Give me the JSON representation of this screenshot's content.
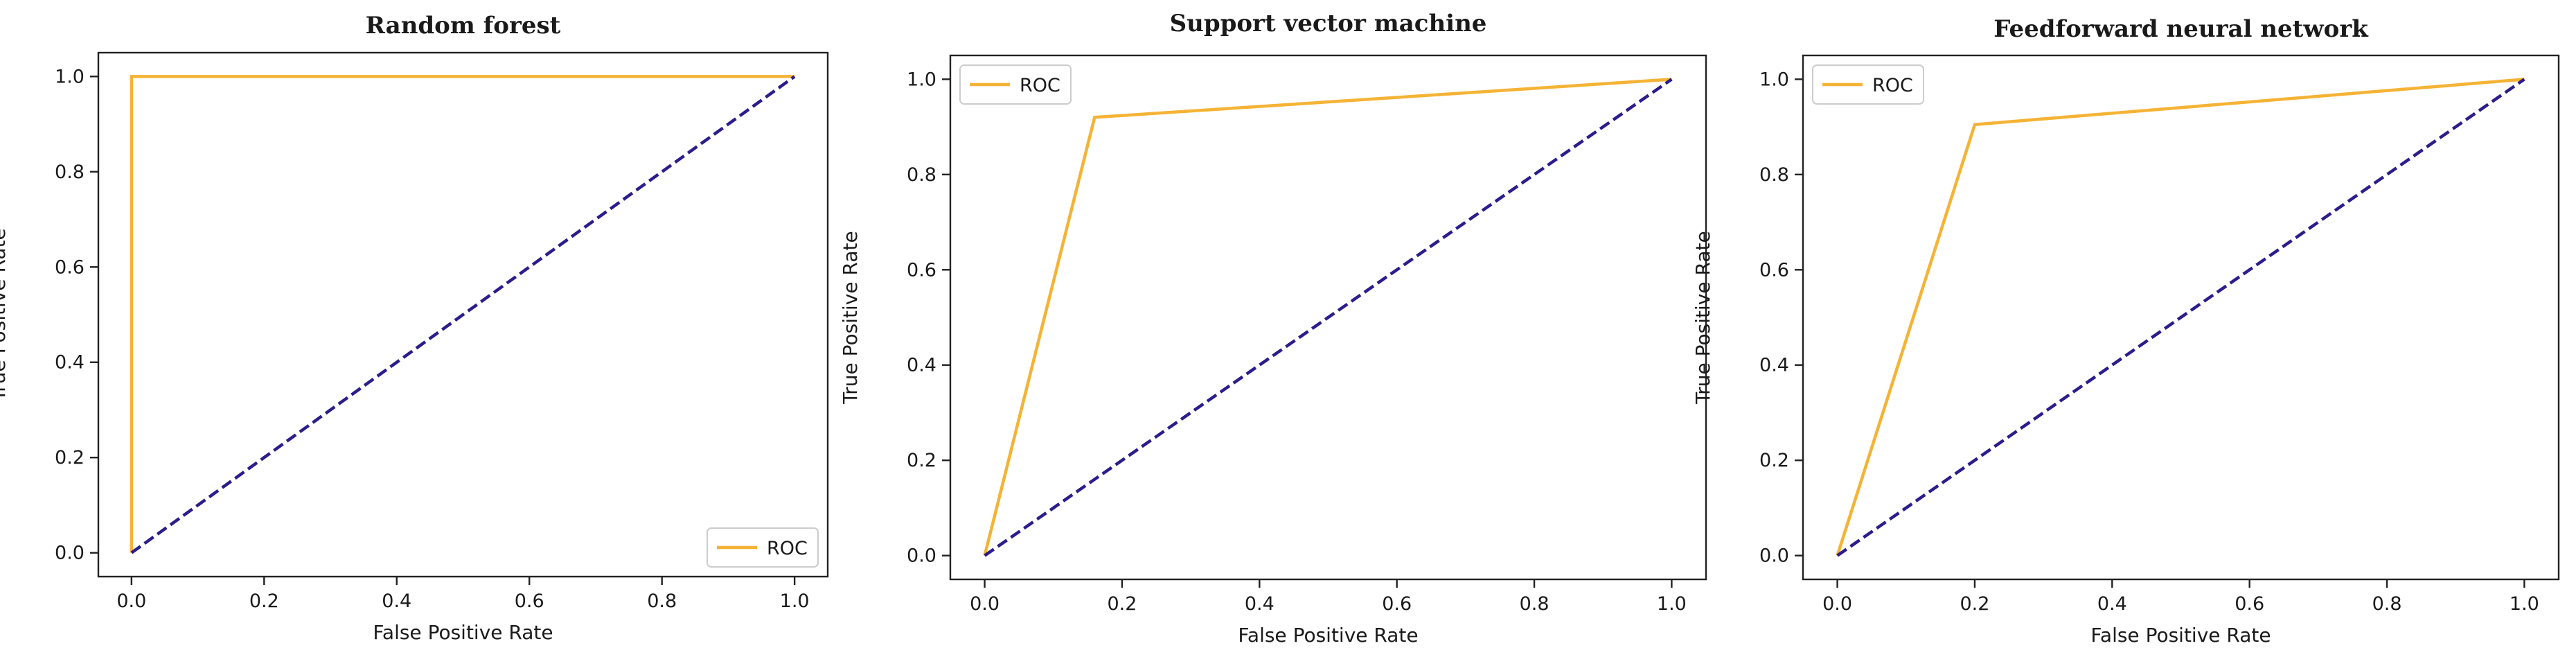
{
  "chart_data": [
    {
      "type": "line",
      "title": "Random forest",
      "xlabel": "False Positive Rate",
      "ylabel": "True Positive Rate",
      "xlim": [
        0.0,
        1.0
      ],
      "ylim": [
        0.0,
        1.0
      ],
      "xticks": [
        "0.0",
        "0.2",
        "0.4",
        "0.6",
        "0.8",
        "1.0"
      ],
      "yticks": [
        "0.0",
        "0.2",
        "0.4",
        "0.6",
        "0.8",
        "1.0"
      ],
      "grid": false,
      "legend_position": "bottom-right",
      "series": [
        {
          "name": "ROC",
          "x": [
            0.0,
            0.0,
            1.0
          ],
          "y": [
            0.0,
            1.0,
            1.0
          ],
          "color": "#f5b335",
          "style": "solid"
        },
        {
          "x": [
            0.0,
            1.0
          ],
          "y": [
            0.0,
            1.0
          ],
          "color": "#2b1d8c",
          "style": "dashed"
        }
      ]
    },
    {
      "type": "line",
      "title": "Support vector machine",
      "xlabel": "False Positive Rate",
      "ylabel": "True Positive Rate",
      "xlim": [
        0.0,
        1.0
      ],
      "ylim": [
        0.0,
        1.0
      ],
      "xticks": [
        "0.0",
        "0.2",
        "0.4",
        "0.6",
        "0.8",
        "1.0"
      ],
      "yticks": [
        "0.0",
        "0.2",
        "0.4",
        "0.6",
        "0.8",
        "1.0"
      ],
      "grid": false,
      "legend_position": "top-left",
      "series": [
        {
          "name": "ROC",
          "x": [
            0.0,
            0.16,
            1.0
          ],
          "y": [
            0.0,
            0.92,
            1.0
          ],
          "color": "#f5b335",
          "style": "solid"
        },
        {
          "x": [
            0.0,
            1.0
          ],
          "y": [
            0.0,
            1.0
          ],
          "color": "#2b1d8c",
          "style": "dashed"
        }
      ]
    },
    {
      "type": "line",
      "title": "Feedforward neural network",
      "xlabel": "False Positive Rate",
      "ylabel": "True Positive Rate",
      "xlim": [
        0.0,
        1.0
      ],
      "ylim": [
        0.0,
        1.0
      ],
      "xticks": [
        "0.0",
        "0.2",
        "0.4",
        "0.6",
        "0.8",
        "1.0"
      ],
      "yticks": [
        "0.0",
        "0.2",
        "0.4",
        "0.6",
        "0.8",
        "1.0"
      ],
      "grid": false,
      "legend_position": "top-left",
      "series": [
        {
          "name": "ROC",
          "x": [
            0.0,
            0.2,
            1.0
          ],
          "y": [
            0.0,
            0.905,
            1.0
          ],
          "color": "#f5b335",
          "style": "solid"
        },
        {
          "x": [
            0.0,
            1.0
          ],
          "y": [
            0.0,
            1.0
          ],
          "color": "#2b1d8c",
          "style": "dashed"
        }
      ]
    }
  ]
}
